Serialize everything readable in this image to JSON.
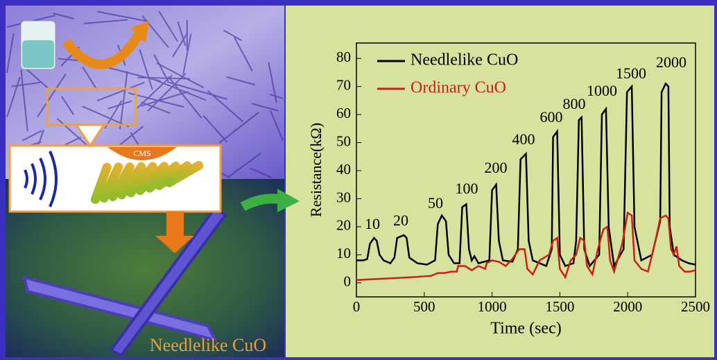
{
  "chart_data": {
    "type": "line",
    "x_label": "Time (sec)",
    "y_label": "Resistance(kΩ)",
    "xlim": [
      0,
      2500
    ],
    "ylim": [
      -5,
      85.5
    ],
    "xticks": [
      0,
      500,
      1000,
      1500,
      2000,
      2500
    ],
    "yticks": [
      0,
      10,
      20,
      30,
      40,
      50,
      60,
      70,
      80
    ],
    "legend": "upper left",
    "series": [
      {
        "name": "Needlelike CuO",
        "color": "#000000",
        "x": [
          0,
          50,
          80,
          100,
          130,
          150,
          170,
          200,
          250,
          280,
          300,
          350,
          370,
          390,
          450,
          520,
          580,
          600,
          630,
          660,
          680,
          720,
          760,
          780,
          810,
          830,
          850,
          870,
          900,
          980,
          1000,
          1030,
          1050,
          1080,
          1150,
          1190,
          1210,
          1250,
          1270,
          1300,
          1400,
          1440,
          1450,
          1480,
          1500,
          1540,
          1600,
          1620,
          1640,
          1660,
          1680,
          1720,
          1790,
          1810,
          1840,
          1860,
          1900,
          1970,
          1995,
          2030,
          2050,
          2100,
          2180,
          2240,
          2250,
          2280,
          2300,
          2310,
          2340,
          2400,
          2450,
          2500
        ],
        "values": [
          8,
          8,
          8.5,
          14,
          16,
          15,
          10,
          8,
          7,
          9,
          16,
          17,
          16,
          9,
          7,
          6.5,
          8,
          21,
          24,
          22,
          10,
          7,
          7,
          27,
          28,
          12,
          8,
          9.5,
          7,
          8,
          33,
          35,
          15,
          8,
          7.5,
          12,
          44,
          46,
          15,
          8,
          6,
          12,
          52,
          54,
          10,
          6,
          7,
          15,
          58,
          59,
          12,
          6,
          10,
          60,
          62,
          20,
          6,
          12,
          68,
          70,
          20,
          8,
          10,
          22,
          68,
          71,
          70,
          20,
          10,
          8,
          7,
          6.5
        ]
      },
      {
        "name": "Ordinary CuO",
        "color": "#cc1f10",
        "x": [
          0,
          200,
          400,
          550,
          600,
          650,
          700,
          740,
          750,
          800,
          850,
          900,
          950,
          960,
          1000,
          1050,
          1100,
          1150,
          1200,
          1240,
          1260,
          1300,
          1350,
          1420,
          1450,
          1480,
          1500,
          1540,
          1580,
          1620,
          1650,
          1680,
          1700,
          1740,
          1780,
          1820,
          1850,
          1870,
          1900,
          1960,
          2000,
          2030,
          2050,
          2100,
          2150,
          2200,
          2240,
          2280,
          2300,
          2320,
          2340,
          2360,
          2380,
          2420,
          2460,
          2500
        ],
        "values": [
          1,
          1.5,
          2,
          2.5,
          3.5,
          3.5,
          4,
          4,
          6,
          6,
          4.5,
          6,
          5,
          7,
          8,
          7.5,
          6,
          8.5,
          12,
          12,
          5,
          3,
          8,
          10,
          15,
          16,
          5,
          2,
          8,
          10,
          16,
          15,
          6,
          3,
          12,
          19,
          20,
          8,
          4,
          14,
          25,
          24,
          8,
          5,
          4,
          14,
          23,
          24,
          23,
          12,
          10,
          13,
          6,
          4,
          4,
          4.5
        ]
      }
    ],
    "annotations": [
      "10",
      "20",
      "50",
      "100",
      "200",
      "400",
      "600",
      "800",
      "1000",
      "1500",
      "2000"
    ]
  },
  "illustration": {
    "cms_label": "CMS",
    "caption": "Needlelike CuO"
  }
}
